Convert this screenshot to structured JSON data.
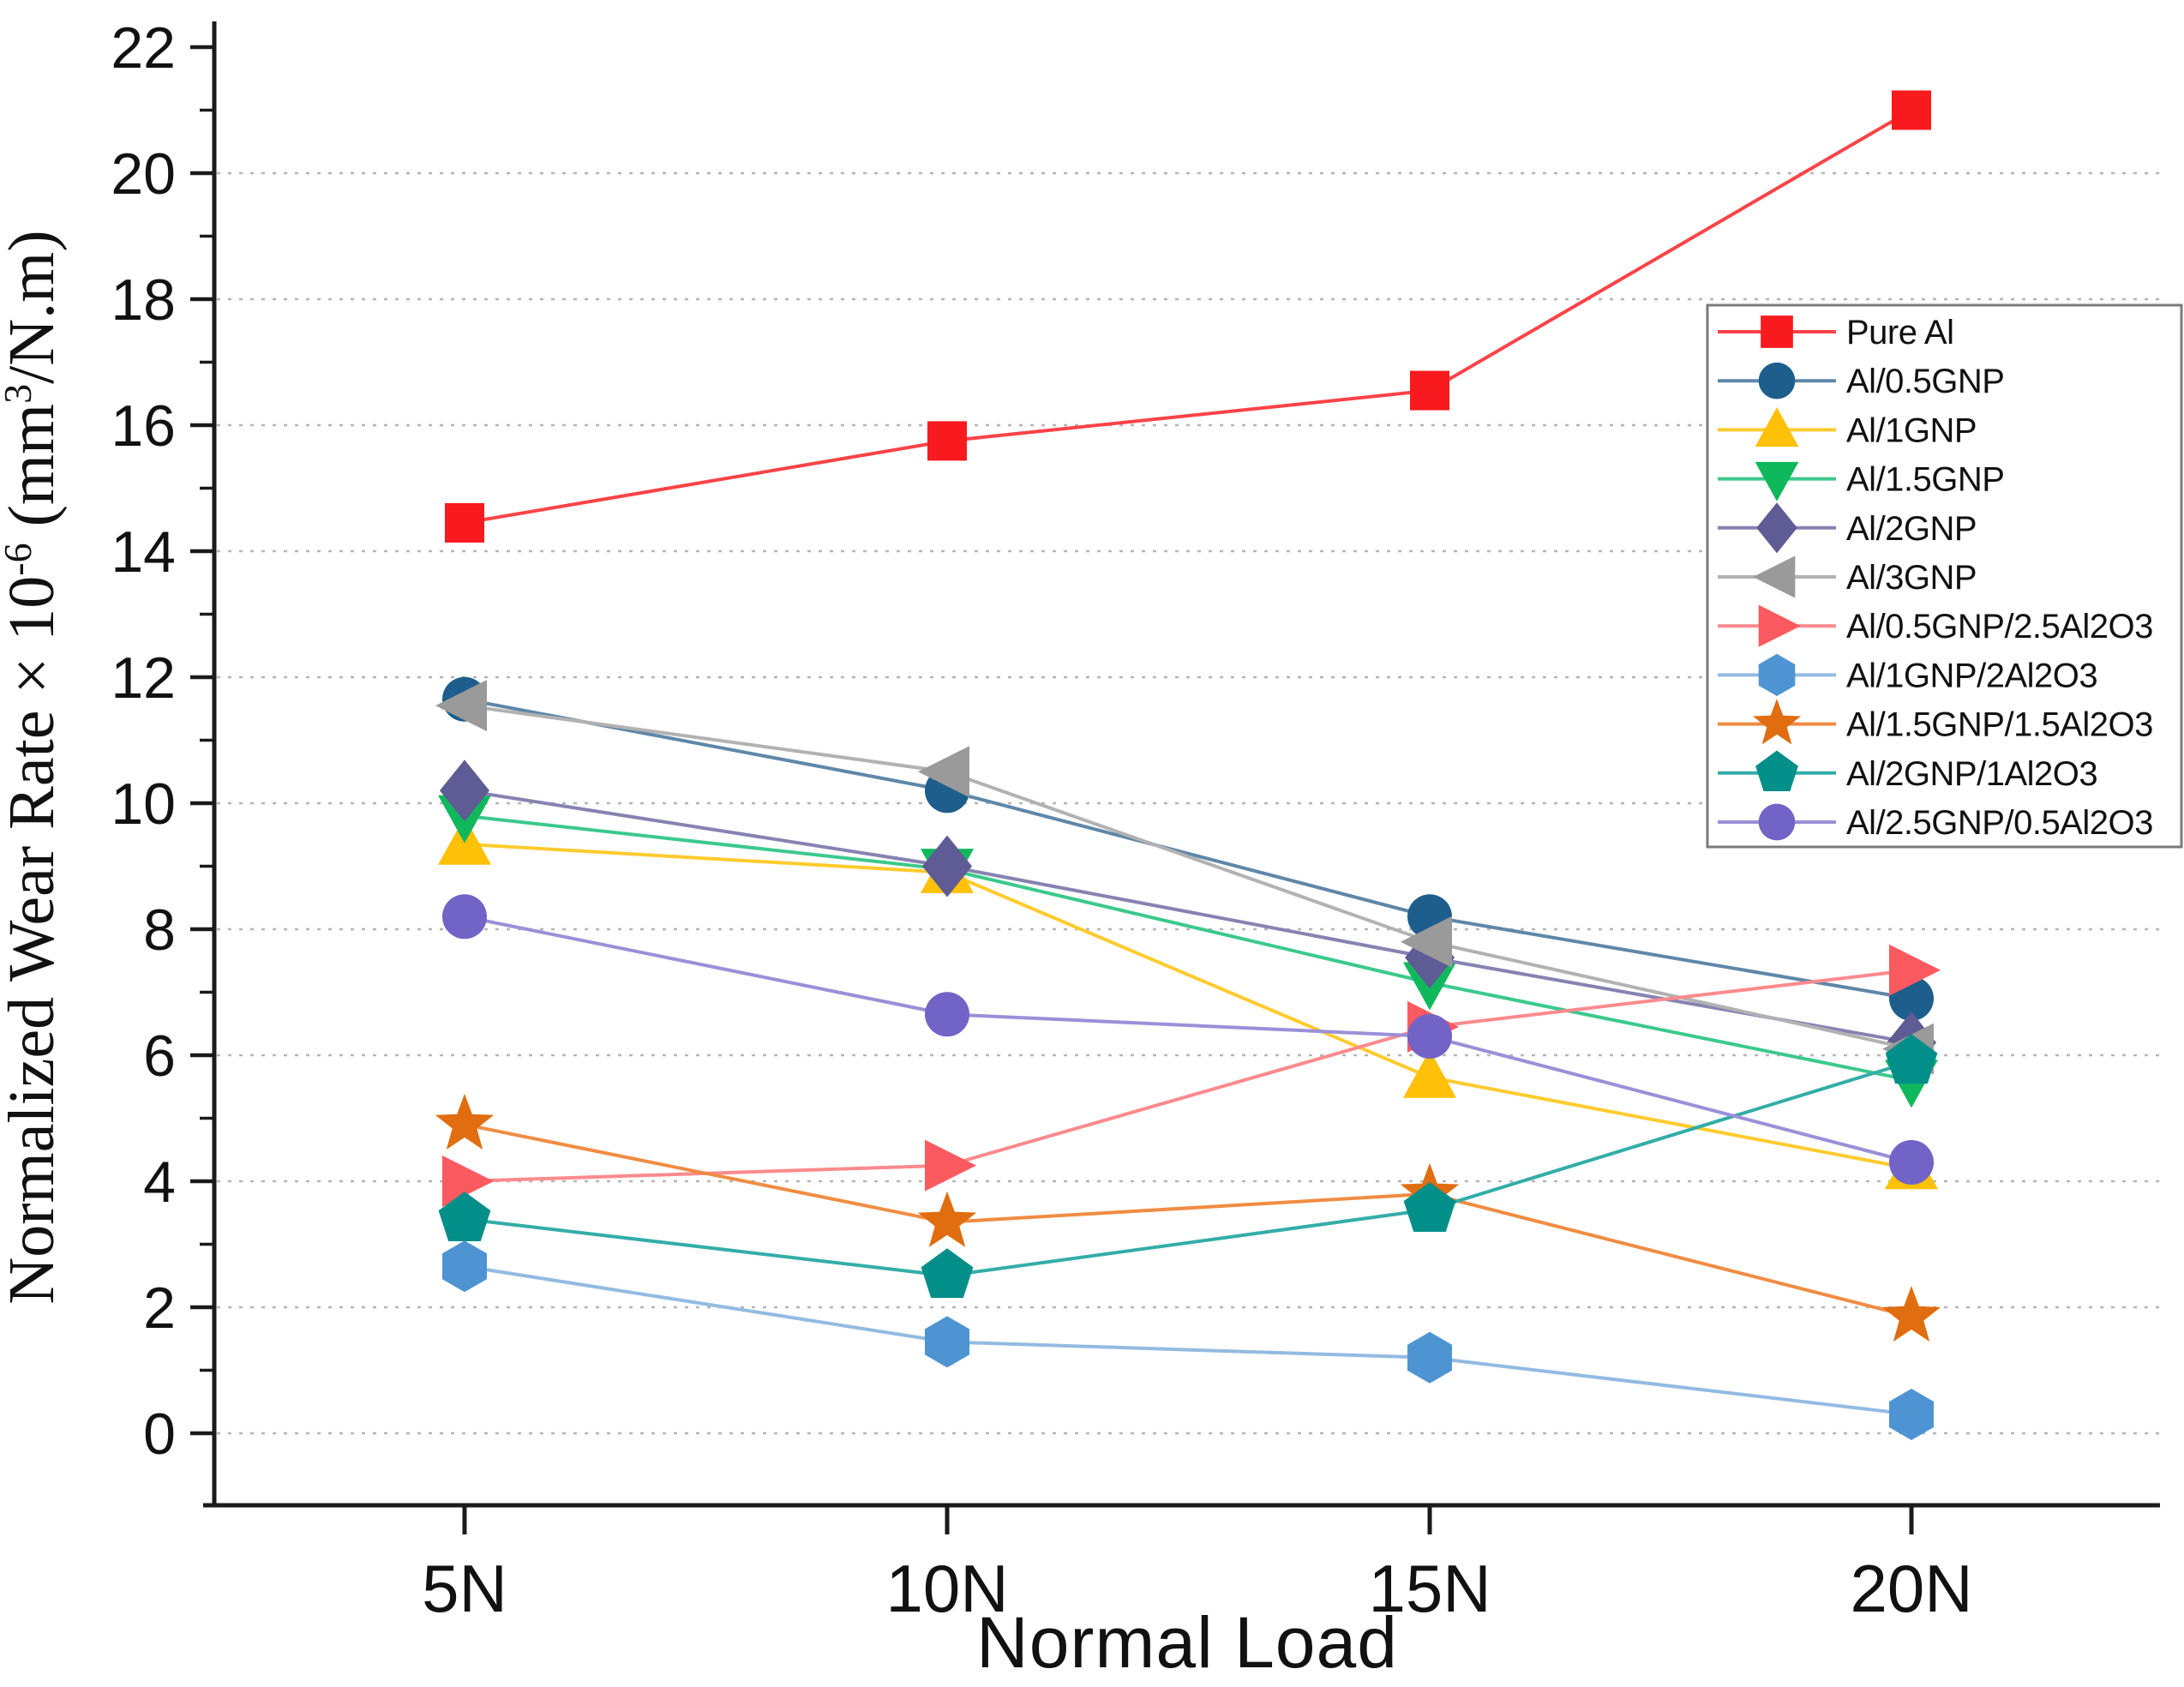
{
  "chart_data": {
    "type": "line",
    "title": "",
    "xlabel": "Normal Load",
    "ylabel": "Normalized Wear Rate × 10⁻⁶ (mm³/N.m)",
    "ylabel_parts": [
      {
        "t": "Normalized Wear Rate × 10"
      },
      {
        "sup": "-6"
      },
      {
        "t": " (mm"
      },
      {
        "sup": "3"
      },
      {
        "t": "/N.m)"
      }
    ],
    "categories": [
      "5N",
      "10N",
      "15N",
      "20N"
    ],
    "ylim": [
      -1,
      22.3
    ],
    "ytick_major_step": 2,
    "ytick_labels": [
      "0",
      "2",
      "4",
      "6",
      "8",
      "10",
      "12",
      "14",
      "16",
      "18",
      "20",
      "22"
    ],
    "grid": "horizontal-dotted-even-values-0-to-20",
    "legend_position": "upper-right",
    "axis_color": "#1a1a1a",
    "gridline_color": "#b5b5b5",
    "legend_border_color": "#7b7b7b",
    "series": [
      {
        "name": "Pure Al",
        "marker": "square",
        "color": "#f81a1f",
        "line_color": "#fb4347",
        "values": [
          14.45,
          15.75,
          16.55,
          21.0
        ]
      },
      {
        "name": "Al/0.5GNP",
        "marker": "circle",
        "color": "#1d5e8c",
        "line_color": "#5e87a8",
        "values": [
          11.65,
          10.2,
          8.2,
          6.9
        ]
      },
      {
        "name": "Al/1GNP",
        "marker": "triangle-up",
        "color": "#ffc008",
        "line_color": "#ffcb2e",
        "values": [
          9.35,
          8.9,
          5.65,
          4.2
        ]
      },
      {
        "name": "Al/1.5GNP",
        "marker": "triangle-down",
        "color": "#10b85c",
        "line_color": "#3bc98c",
        "values": [
          9.8,
          8.95,
          7.15,
          5.6
        ]
      },
      {
        "name": "Al/2GNP",
        "marker": "diamond",
        "color": "#5f5b94",
        "line_color": "#8683b2",
        "values": [
          10.2,
          9.0,
          7.55,
          6.2
        ]
      },
      {
        "name": "Al/3GNP",
        "marker": "triangle-left",
        "color": "#9a9a9a",
        "line_color": "#b2b2b2",
        "values": [
          11.55,
          10.5,
          7.8,
          6.1
        ]
      },
      {
        "name": "Al/0.5GNP/2.5Al2O3",
        "marker": "triangle-right",
        "color": "#fb5a60",
        "line_color": "#fc8a8d",
        "values": [
          4.0,
          4.25,
          6.45,
          7.35
        ]
      },
      {
        "name": "Al/1GNP/2Al2O3",
        "marker": "hexagon",
        "color": "#4f94d2",
        "line_color": "#92bbe2",
        "values": [
          2.65,
          1.45,
          1.2,
          0.3
        ]
      },
      {
        "name": "Al/1.5GNP/1.5Al2O3",
        "marker": "star",
        "color": "#e06d10",
        "line_color": "#f08c42",
        "values": [
          4.9,
          3.35,
          3.8,
          1.85
        ]
      },
      {
        "name": "Al/2GNP/1Al2O3",
        "marker": "pentagon",
        "color": "#028f8a",
        "line_color": "#33ada8",
        "values": [
          3.4,
          2.5,
          3.55,
          5.9
        ]
      },
      {
        "name": "Al/2.5GNP/0.5Al2O3",
        "marker": "circle",
        "color": "#7263c6",
        "line_color": "#9a90d8",
        "values": [
          8.2,
          6.65,
          6.3,
          4.3
        ]
      }
    ]
  }
}
